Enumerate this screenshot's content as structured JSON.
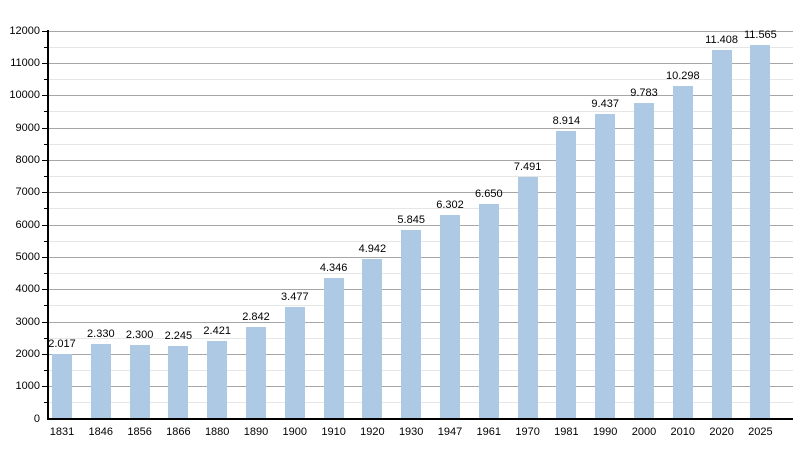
{
  "chart_data": {
    "type": "bar",
    "title": "",
    "xlabel": "",
    "ylabel": "",
    "categories": [
      "1831",
      "1846",
      "1856",
      "1866",
      "1880",
      "1890",
      "1900",
      "1910",
      "1920",
      "1930",
      "1947",
      "1961",
      "1970",
      "1981",
      "1990",
      "2000",
      "2010",
      "2020",
      "2025"
    ],
    "values": [
      2017,
      2330,
      2300,
      2245,
      2421,
      2842,
      3477,
      4346,
      4942,
      5845,
      6302,
      6650,
      7491,
      8914,
      9437,
      9783,
      10298,
      11408,
      11565
    ],
    "value_labels": [
      "2.017",
      "2.330",
      "2.300",
      "2.245",
      "2.421",
      "2.842",
      "3.477",
      "4.346",
      "4.942",
      "5.845",
      "6.302",
      "6.650",
      "7.491",
      "8.914",
      "9.437",
      "9.783",
      "10.298",
      "11.408",
      "11.565"
    ],
    "ylim": [
      0,
      12000
    ],
    "ytick_major": 1000,
    "ytick_minor": 500,
    "y_tick_labels": [
      "0",
      "1000",
      "2000",
      "3000",
      "4000",
      "5000",
      "6000",
      "7000",
      "8000",
      "9000",
      "10000",
      "11000",
      "12000"
    ],
    "grid": "horizontal",
    "legend": "none",
    "colors": {
      "bar_fill": "#aec9e3",
      "grid_major": "#a6a6a6",
      "grid_minor": "#e6e6e6",
      "axis": "#000000",
      "text": "#000000",
      "background": "#ffffff"
    }
  }
}
